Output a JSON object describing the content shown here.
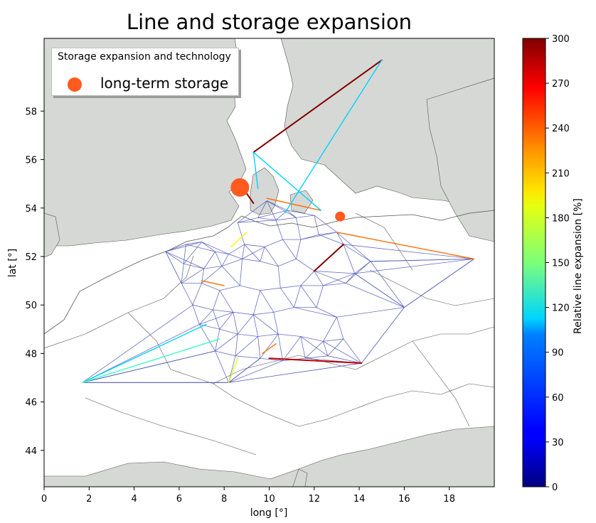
{
  "title": "Line and storage expansion",
  "xlabel": "long [°]",
  "ylabel": "lat [°]",
  "xticks": [
    "0",
    "2",
    "4",
    "6",
    "8",
    "10",
    "12",
    "14",
    "16",
    "18"
  ],
  "yticks": [
    "44",
    "46",
    "48",
    "50",
    "52",
    "54",
    "56",
    "58"
  ],
  "legend": {
    "title": "Storage expansion and technology",
    "entries": [
      {
        "label": "long-term storage",
        "color": "#ff5a1f"
      }
    ]
  },
  "colorbar": {
    "label": "Relative line expansion [%]",
    "ticks": [
      "0",
      "30",
      "60",
      "90",
      "120",
      "150",
      "180",
      "210",
      "240",
      "270",
      "300"
    ],
    "colormap": "jet"
  },
  "chart_data": {
    "type": "map",
    "xlim": [
      0,
      20
    ],
    "ylim": [
      42.5,
      61
    ],
    "title": "Line and storage expansion",
    "xlabel": "long [°]",
    "ylabel": "lat [°]",
    "storage": [
      {
        "lon": 8.7,
        "lat": 54.85,
        "technology": "long-term storage",
        "size": "large"
      },
      {
        "lon": 13.15,
        "lat": 53.65,
        "technology": "long-term storage",
        "size": "small"
      }
    ],
    "lines": [
      {
        "from": [
          9.3,
          56.3
        ],
        "to": [
          15.0,
          60.1
        ],
        "expansion": 300
      },
      {
        "from": [
          8.5,
          54.9
        ],
        "to": [
          9.0,
          54.6
        ],
        "expansion": 300
      },
      {
        "from": [
          9.0,
          54.6
        ],
        "to": [
          9.3,
          54.2
        ],
        "expansion": 300
      },
      {
        "from": [
          12.0,
          51.4
        ],
        "to": [
          13.3,
          52.5
        ],
        "expansion": 300
      },
      {
        "from": [
          10.0,
          47.8
        ],
        "to": [
          14.1,
          47.6
        ],
        "expansion": 280
      },
      {
        "from": [
          9.9,
          54.4
        ],
        "to": [
          12.3,
          53.9
        ],
        "expansion": 230
      },
      {
        "from": [
          13.0,
          53.0
        ],
        "to": [
          19.1,
          51.9
        ],
        "expansion": 230
      },
      {
        "from": [
          7.0,
          51.0
        ],
        "to": [
          8.0,
          50.8
        ],
        "expansion": 230
      },
      {
        "from": [
          10.3,
          48.4
        ],
        "to": [
          9.7,
          48.0
        ],
        "expansion": 230
      },
      {
        "from": [
          9.3,
          56.3
        ],
        "to": [
          12.3,
          53.9
        ],
        "expansion": 100
      },
      {
        "from": [
          15.0,
          60.1
        ],
        "to": [
          10.7,
          53.8
        ],
        "expansion": 100
      },
      {
        "from": [
          9.3,
          56.3
        ],
        "to": [
          9.5,
          54.8
        ],
        "expansion": 100
      },
      {
        "from": [
          1.7,
          46.8
        ],
        "to": [
          7.2,
          49.2
        ],
        "expansion": 100
      },
      {
        "from": [
          1.7,
          46.8
        ],
        "to": [
          7.8,
          48.6
        ],
        "expansion": 130
      },
      {
        "from": [
          9.0,
          53.0
        ],
        "to": [
          8.3,
          52.4
        ],
        "expansion": 190
      },
      {
        "from": [
          8.6,
          47.8
        ],
        "to": [
          8.2,
          46.8
        ],
        "expansion": 180
      }
    ]
  }
}
